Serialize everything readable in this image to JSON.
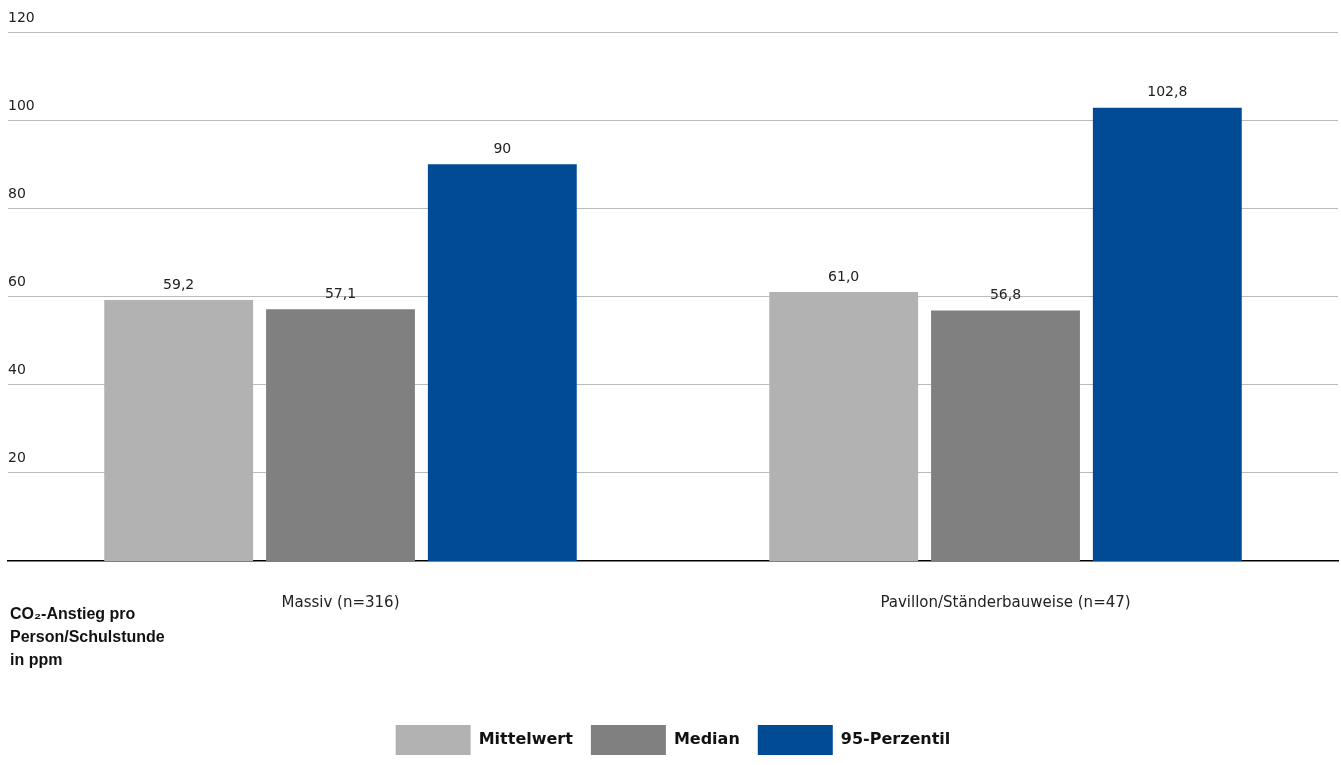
{
  "chart_data": {
    "type": "bar",
    "annotations": [
      "CO₂-Anstieg pro Person/Schulstunde in ppm"
    ],
    "categories": [
      "Massiv (n=316)",
      "Pavillon/Ständerbauweise (n=47)"
    ],
    "series": [
      {
        "name": "Mittelwert",
        "color": "#b2b2b2",
        "values": [
          59.2,
          61.0
        ],
        "value_labels": [
          "59,2",
          "61,0"
        ]
      },
      {
        "name": "Median",
        "color": "#808080",
        "values": [
          57.1,
          56.8
        ],
        "value_labels": [
          "57,1",
          "56,8"
        ]
      },
      {
        "name": "95-Perzentil",
        "color": "#004b93",
        "values": [
          90,
          102.8
        ],
        "value_labels": [
          "90",
          "102,8"
        ]
      }
    ],
    "ylim": [
      0,
      120
    ],
    "yticks": [
      20,
      40,
      60,
      80,
      100,
      120
    ],
    "grid": "y",
    "legend": "bottom"
  }
}
